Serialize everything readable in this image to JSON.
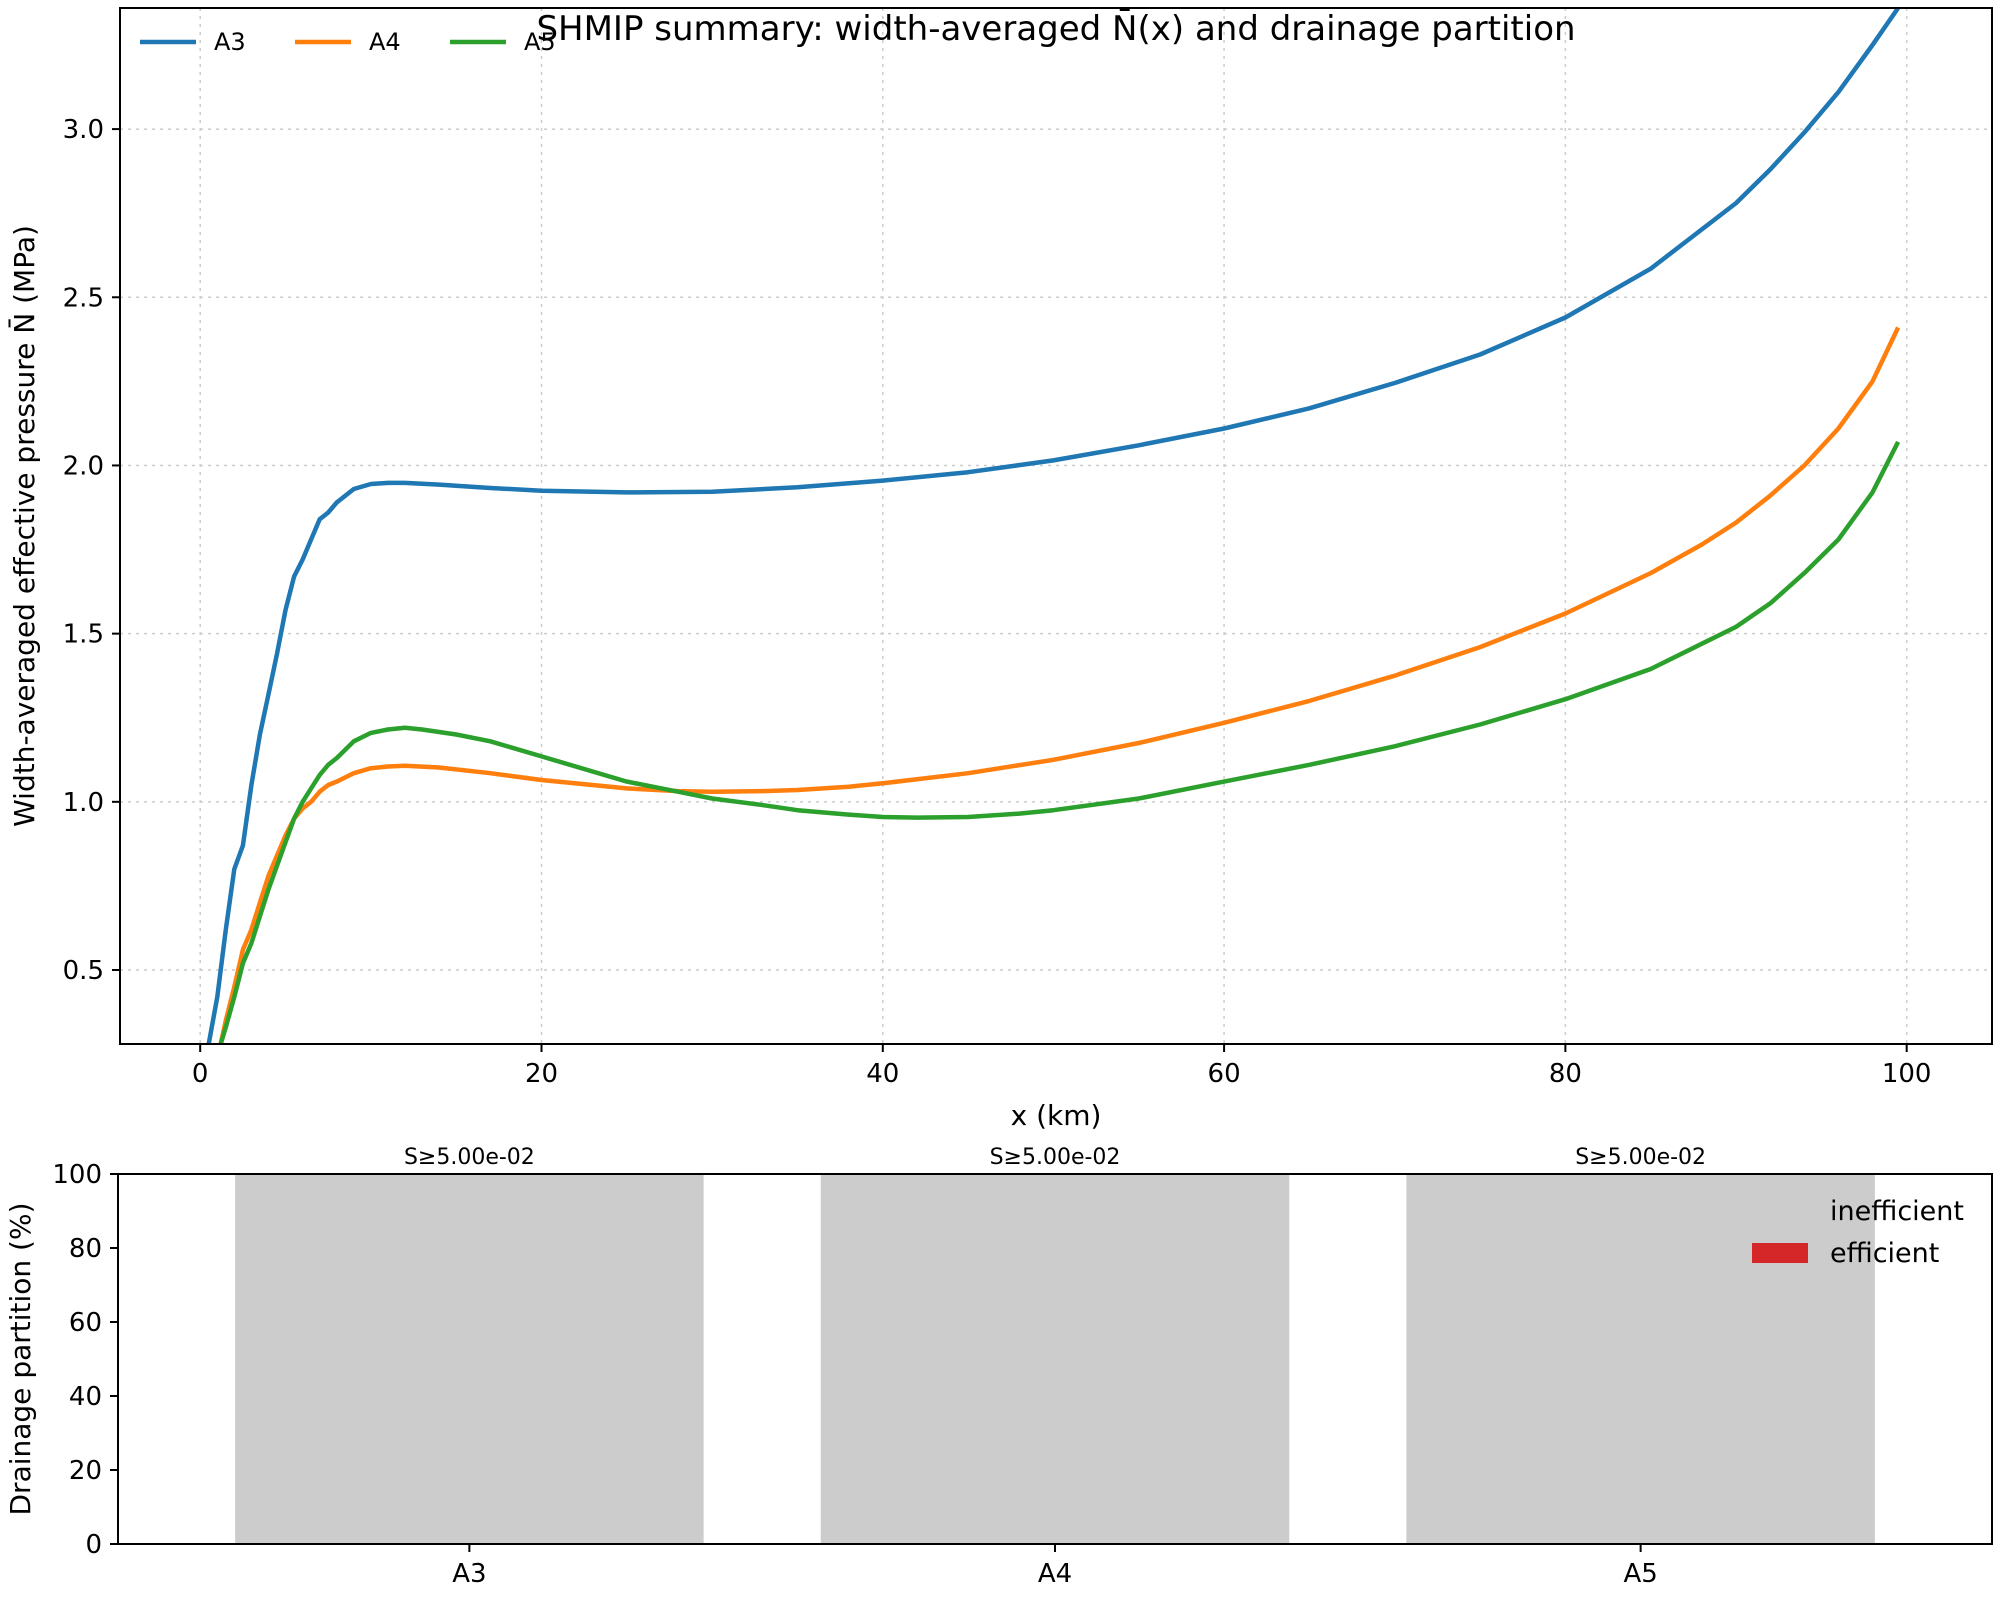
{
  "chart_data": [
    {
      "type": "line",
      "title": "SHMIP summary: width-averaged N̄(x) and drainage partition",
      "xlabel": "x (km)",
      "ylabel": "Width-averaged effective pressure N̄ (MPa)",
      "xlim": [
        -4.7,
        105
      ],
      "ylim": [
        0.28,
        3.36
      ],
      "xticks": [
        0,
        20,
        40,
        60,
        80,
        100
      ],
      "xtick_labels": [
        "0",
        "20",
        "40",
        "60",
        "80",
        "100"
      ],
      "yticks": [
        0.5,
        1.0,
        1.5,
        2.0,
        2.5,
        3.0
      ],
      "ytick_labels": [
        "0.5",
        "1.0",
        "1.5",
        "2.0",
        "2.5",
        "3.0"
      ],
      "grid": true,
      "legend_position": "top-left",
      "series": [
        {
          "name": "A3",
          "color": "#1f77b4",
          "x": [
            0.5,
            1,
            1.5,
            2,
            2.5,
            3,
            3.5,
            4,
            4.5,
            5,
            5.5,
            6,
            6.5,
            7,
            7.5,
            8,
            9,
            10,
            11,
            12,
            14,
            17,
            20,
            25,
            30,
            35,
            40,
            45,
            50,
            55,
            60,
            65,
            70,
            75,
            80,
            85,
            90,
            92,
            94,
            96,
            98,
            99.5
          ],
          "y": [
            0.28,
            0.42,
            0.62,
            0.8,
            0.87,
            1.05,
            1.2,
            1.32,
            1.44,
            1.57,
            1.67,
            1.72,
            1.78,
            1.84,
            1.86,
            1.89,
            1.93,
            1.945,
            1.948,
            1.948,
            1.943,
            1.933,
            1.925,
            1.92,
            1.922,
            1.935,
            1.955,
            1.98,
            2.015,
            2.06,
            2.11,
            2.17,
            2.245,
            2.33,
            2.44,
            2.585,
            2.78,
            2.88,
            2.99,
            3.11,
            3.25,
            3.36
          ]
        },
        {
          "name": "A4",
          "color": "#ff7f0e",
          "x": [
            1.2,
            1.5,
            2,
            2.5,
            3,
            3.5,
            4,
            4.5,
            5,
            5.5,
            6,
            6.5,
            7,
            7.5,
            8,
            9,
            10,
            11,
            12,
            14,
            17,
            20,
            25,
            28,
            30,
            33,
            35,
            38,
            40,
            45,
            50,
            55,
            60,
            65,
            70,
            75,
            80,
            85,
            88,
            90,
            92,
            94,
            96,
            98,
            99.5
          ],
          "y": [
            0.28,
            0.35,
            0.45,
            0.56,
            0.62,
            0.7,
            0.78,
            0.84,
            0.9,
            0.95,
            0.98,
            1.0,
            1.03,
            1.05,
            1.06,
            1.085,
            1.1,
            1.105,
            1.107,
            1.102,
            1.085,
            1.065,
            1.04,
            1.032,
            1.03,
            1.032,
            1.035,
            1.045,
            1.055,
            1.085,
            1.125,
            1.175,
            1.235,
            1.3,
            1.375,
            1.46,
            1.56,
            1.68,
            1.765,
            1.83,
            1.91,
            2.0,
            2.11,
            2.25,
            2.41
          ]
        },
        {
          "name": "A5",
          "color": "#2ca02c",
          "x": [
            1.2,
            1.5,
            2,
            2.5,
            3,
            3.5,
            4,
            4.5,
            5,
            5.5,
            6,
            6.5,
            7,
            7.5,
            8,
            9,
            10,
            11,
            12,
            13,
            15,
            17,
            20,
            25,
            28,
            30,
            33,
            35,
            38,
            40,
            42,
            45,
            48,
            50,
            55,
            60,
            65,
            70,
            75,
            80,
            85,
            88,
            90,
            92,
            94,
            96,
            98,
            99.5
          ],
          "y": [
            0.28,
            0.33,
            0.42,
            0.52,
            0.58,
            0.66,
            0.74,
            0.81,
            0.88,
            0.95,
            1.0,
            1.04,
            1.08,
            1.11,
            1.13,
            1.18,
            1.205,
            1.215,
            1.22,
            1.215,
            1.2,
            1.18,
            1.135,
            1.06,
            1.03,
            1.01,
            0.99,
            0.975,
            0.962,
            0.955,
            0.953,
            0.955,
            0.965,
            0.975,
            1.01,
            1.06,
            1.11,
            1.165,
            1.23,
            1.305,
            1.395,
            1.47,
            1.52,
            1.59,
            1.68,
            1.78,
            1.92,
            2.07
          ]
        }
      ]
    },
    {
      "type": "bar",
      "stacked": true,
      "categories": [
        "A3",
        "A4",
        "A5"
      ],
      "ylabel": "Drainage partition (%)",
      "ylim": [
        0,
        100
      ],
      "yticks": [
        0,
        20,
        40,
        60,
        80,
        100
      ],
      "ytick_labels": [
        "0",
        "20",
        "40",
        "60",
        "80",
        "100"
      ],
      "legend_position": "top-right",
      "series": [
        {
          "name": "inefficient",
          "color": "#cccccc",
          "values": [
            100,
            100,
            100
          ]
        },
        {
          "name": "efficient",
          "color": "#d62728",
          "values": [
            0,
            0,
            0
          ]
        }
      ],
      "bar_labels": [
        "S≥5.00e-02",
        "S≥5.00e-02",
        "S≥5.00e-02"
      ]
    }
  ]
}
